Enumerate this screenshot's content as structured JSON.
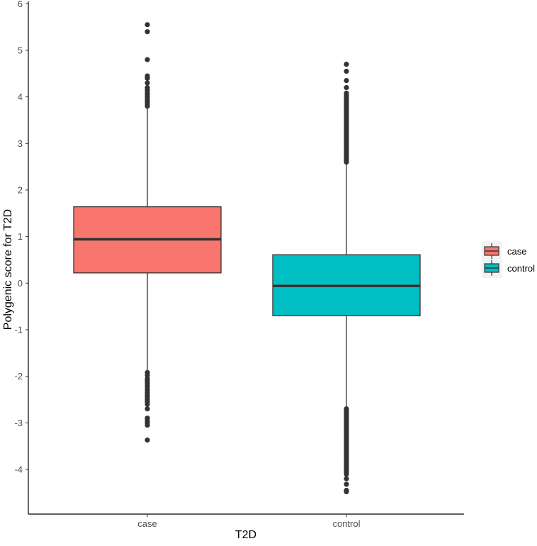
{
  "chart_data": {
    "type": "box",
    "title": "",
    "xlabel": "T2D",
    "ylabel": "Polygenic score for T2D",
    "ylim": [
      -4.96,
      6.05
    ],
    "yticks": [
      "-4",
      "-3",
      "-2",
      "-1",
      "0",
      "1",
      "2",
      "3",
      "4",
      "5",
      "6"
    ],
    "ytick_values": [
      -4,
      -3,
      -2,
      -1,
      0,
      1,
      2,
      3,
      4,
      5,
      6
    ],
    "categories": [
      "case",
      "control"
    ],
    "grid": false,
    "legend_placement": "right",
    "legend": [
      "case",
      "control"
    ],
    "series": [
      {
        "name": "case",
        "color": "#F8766D",
        "q1": 0.22,
        "median": 0.94,
        "q3": 1.64,
        "whisker_low": -1.9,
        "whisker_high": 3.78,
        "outliers": [
          5.55,
          5.4,
          4.8,
          4.45,
          4.4,
          4.3,
          4.2,
          4.15,
          4.1,
          4.05,
          4.0,
          3.95,
          3.9,
          3.85,
          3.8,
          -1.92,
          -1.98,
          -2.05,
          -2.1,
          -2.15,
          -2.2,
          -2.25,
          -2.3,
          -2.35,
          -2.4,
          -2.45,
          -2.5,
          -2.55,
          -2.6,
          -2.7,
          -2.9,
          -2.95,
          -3.0,
          -3.05,
          -3.37
        ]
      },
      {
        "name": "control",
        "color": "#00BFC4",
        "q1": -0.7,
        "median": -0.06,
        "q3": 0.61,
        "whisker_low": -2.68,
        "whisker_high": 2.58,
        "outliers_dense_ranges": [
          [
            2.6,
            4.1
          ],
          [
            -4.1,
            -2.7
          ]
        ],
        "outliers": [
          4.2,
          4.35,
          4.55,
          4.7,
          -4.2,
          -4.32,
          -4.45,
          -4.48
        ]
      }
    ]
  }
}
